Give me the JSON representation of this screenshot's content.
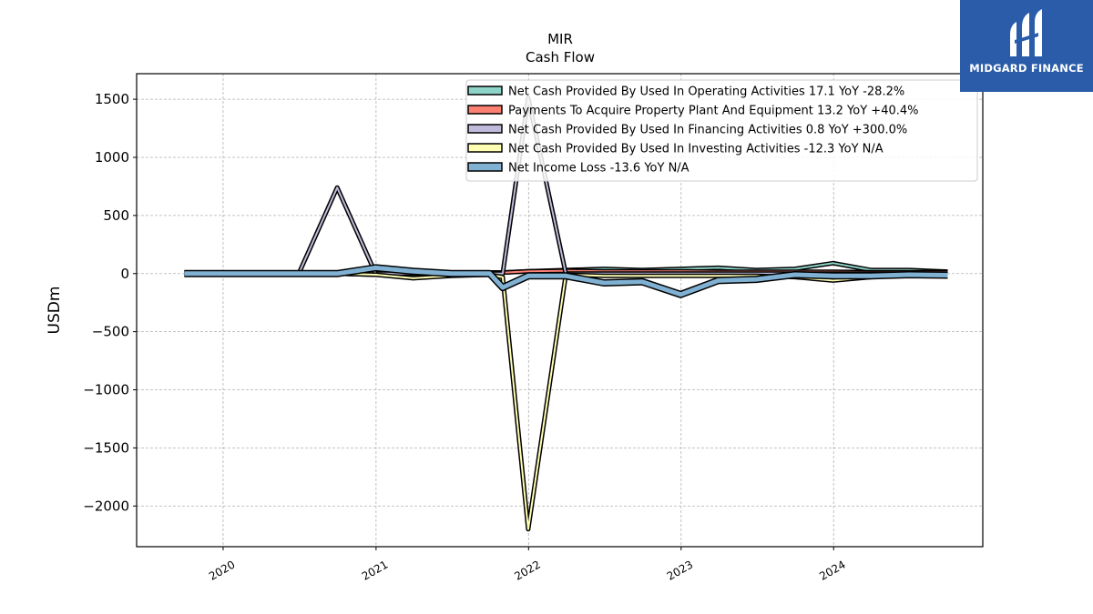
{
  "logo": {
    "text": "MIDGARD FINANCE",
    "background": "#2a5caa"
  },
  "chart_data": {
    "type": "line",
    "title": "MIR",
    "subtitle": "Cash Flow",
    "ylabel": "USDm",
    "xlabel": "",
    "ylim": [
      -2350,
      1720
    ],
    "yticks": [
      1500,
      1000,
      500,
      0,
      -500,
      -1000,
      -1500,
      -2000
    ],
    "ytick_labels": [
      "1500",
      "1000",
      "500",
      "0",
      "−500",
      "−1000",
      "−1500",
      "−2000"
    ],
    "xlim": [
      "2019-06-08",
      "2024-12-23"
    ],
    "xticks": [
      "2020-01-01",
      "2021-01-01",
      "2022-01-01",
      "2023-01-01",
      "2024-01-01"
    ],
    "xtick_labels": [
      "2020",
      "2021",
      "2022",
      "2023",
      "2024"
    ],
    "grid": true,
    "legend_position": "top-right",
    "series": [
      {
        "name": "Net Cash Provided By Used In Operating Activities  17.1 YoY -28.2%",
        "color": "#8dd3c7",
        "width": 2,
        "x": [
          "2019-09-30",
          "2020-03-31",
          "2020-06-30",
          "2020-09-30",
          "2020-12-31",
          "2021-03-31",
          "2021-06-30",
          "2021-09-30",
          "2021-10-31",
          "2021-12-31",
          "2022-03-31",
          "2022-06-30",
          "2022-09-30",
          "2022-12-31",
          "2023-03-31",
          "2023-06-30",
          "2023-09-30",
          "2023-12-31",
          "2024-03-31",
          "2024-06-30",
          "2024-09-30"
        ],
        "y": [
          0,
          0,
          0,
          0,
          -10,
          -20,
          -10,
          10,
          10,
          20,
          30,
          40,
          30,
          40,
          50,
          30,
          40,
          90,
          30,
          30,
          17.1
        ]
      },
      {
        "name": "Payments To Acquire Property Plant And Equipment  13.2 YoY +40.4%",
        "color": "#fb8072",
        "width": 2,
        "x": [
          "2019-09-30",
          "2020-03-31",
          "2020-06-30",
          "2020-09-30",
          "2020-12-31",
          "2021-03-31",
          "2021-06-30",
          "2021-09-30",
          "2021-10-31",
          "2021-12-31",
          "2022-03-31",
          "2022-06-30",
          "2022-09-30",
          "2022-12-31",
          "2023-03-31",
          "2023-06-30",
          "2023-09-30",
          "2023-12-31",
          "2024-03-31",
          "2024-06-30",
          "2024-09-30"
        ],
        "y": [
          5,
          5,
          5,
          5,
          5,
          5,
          5,
          5,
          8,
          20,
          25,
          20,
          20,
          20,
          15,
          15,
          15,
          15,
          12,
          12,
          13.2
        ]
      },
      {
        "name": "Net Cash Provided By Used In Financing Activities  0.8 YoY +300.0%",
        "color": "#bebada",
        "width": 2,
        "x": [
          "2019-09-30",
          "2020-03-31",
          "2020-06-30",
          "2020-09-30",
          "2020-12-31",
          "2021-03-31",
          "2021-06-30",
          "2021-09-30",
          "2021-10-31",
          "2021-12-31",
          "2022-03-31",
          "2022-06-30",
          "2022-09-30",
          "2022-12-31",
          "2023-03-31",
          "2023-06-30",
          "2023-09-30",
          "2023-12-31",
          "2024-03-31",
          "2024-06-30",
          "2024-09-30"
        ],
        "y": [
          0,
          0,
          0,
          740,
          0,
          0,
          0,
          0,
          0,
          1510,
          0,
          0,
          0,
          0,
          0,
          0,
          0,
          0,
          0,
          0,
          0.8
        ]
      },
      {
        "name": "Net Cash Provided By Used In Investing Activities  -12.3 YoY N/A",
        "color": "#ffffb3",
        "width": 2,
        "x": [
          "2019-09-30",
          "2020-03-31",
          "2020-06-30",
          "2020-09-30",
          "2020-12-31",
          "2021-03-31",
          "2021-06-30",
          "2021-09-30",
          "2021-10-31",
          "2021-12-31",
          "2022-03-31",
          "2022-06-30",
          "2022-09-30",
          "2022-12-31",
          "2023-03-31",
          "2023-06-30",
          "2023-09-30",
          "2023-12-31",
          "2024-03-31",
          "2024-06-30",
          "2024-09-30"
        ],
        "y": [
          0,
          0,
          0,
          0,
          -10,
          -40,
          -20,
          -10,
          -30,
          -2200,
          -10,
          -20,
          -20,
          -20,
          -20,
          -20,
          -30,
          -60,
          -30,
          -10,
          -12.3
        ]
      },
      {
        "name": "Net Income Loss  -13.6 YoY N/A",
        "color": "#80b1d3",
        "width": 5,
        "x": [
          "2019-09-30",
          "2020-03-31",
          "2020-06-30",
          "2020-09-30",
          "2020-12-31",
          "2021-03-31",
          "2021-06-30",
          "2021-09-30",
          "2021-10-31",
          "2021-12-31",
          "2022-03-31",
          "2022-06-30",
          "2022-09-30",
          "2022-12-31",
          "2023-03-31",
          "2023-06-30",
          "2023-09-30",
          "2023-12-31",
          "2024-03-31",
          "2024-06-30",
          "2024-09-30"
        ],
        "y": [
          0,
          0,
          0,
          0,
          50,
          20,
          0,
          0,
          -120,
          -20,
          -20,
          -80,
          -70,
          -180,
          -60,
          -50,
          -10,
          -20,
          -20,
          -10,
          -13.6
        ]
      }
    ]
  }
}
